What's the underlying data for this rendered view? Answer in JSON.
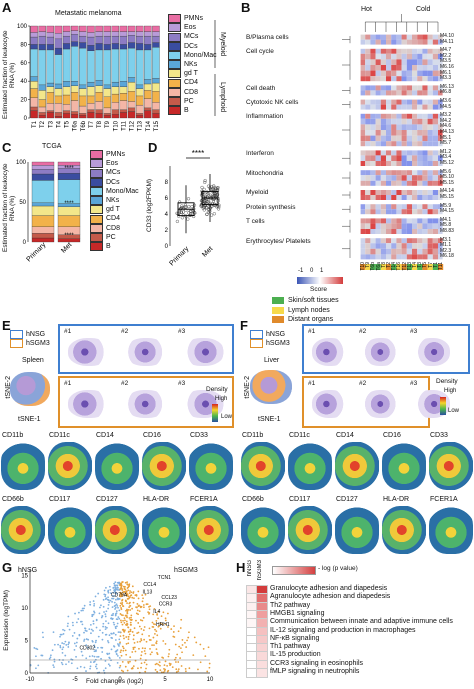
{
  "panels": {
    "A": {
      "letter": "A",
      "title": "Metastatic melanoma",
      "ylabel": "Estimated fraction of leukocyte RNA (%)",
      "yticks": [
        "0",
        "20",
        "40",
        "60",
        "80",
        "100"
      ],
      "samples": [
        "T1",
        "T2",
        "T3",
        "T4",
        "T5",
        "T6a",
        "T6b",
        "T7",
        "T8",
        "T9",
        "T10",
        "T11",
        "T12",
        "T13",
        "T14",
        "T15"
      ],
      "myeloid_label": "Myeloid",
      "lymphoid_label": "Lymphoid"
    },
    "B": {
      "letter": "B",
      "hot_label": "Hot",
      "cold_label": "Cold",
      "groups": [
        {
          "name": "B/Plasma cells",
          "modules": [
            "M4.10",
            "M4.11"
          ]
        },
        {
          "name": "Cell cycle",
          "modules": [
            "M4.7",
            "M2.2",
            "M3.5",
            "M6.16",
            "M6.1",
            "M3.3"
          ]
        },
        {
          "name": "Cell death",
          "modules": [
            "M6.13",
            "M6.8"
          ]
        },
        {
          "name": "Cytotoxic NK cells",
          "modules": [
            "M3.6",
            "M4.5"
          ]
        },
        {
          "name": "Inflammation",
          "modules": [
            "M3.2",
            "M4.2",
            "M4.6",
            "M4.13",
            "M5.1",
            "M5.7"
          ]
        },
        {
          "name": "Interferon",
          "modules": [
            "M1.2",
            "M3.4",
            "M5.12"
          ]
        },
        {
          "name": "Mitochondria",
          "modules": [
            "M5.6",
            "M5.10",
            "M5.15"
          ]
        },
        {
          "name": "Myeloid",
          "modules": [
            "M4.14",
            "M5.15"
          ]
        },
        {
          "name": "Protein synthesis",
          "modules": [
            "M5.9",
            "M4.15"
          ]
        },
        {
          "name": "T cells",
          "modules": [
            "M4.1",
            "M5.8",
            "M8.83"
          ]
        },
        {
          "name": "Erythrocytes/ Platelets",
          "modules": [
            "M3.1",
            "M1.1",
            "M2.3",
            "M6.18"
          ]
        }
      ],
      "columns": [
        "T10",
        "T9",
        "T6b",
        "T6a",
        "T8",
        "T2",
        "T14",
        "T16",
        "T12",
        "T13",
        "T4",
        "T3",
        "T5",
        "T7",
        "T1",
        "T11"
      ],
      "score_label": "Score",
      "score_ticks": [
        "-1",
        "0",
        "1"
      ],
      "site_legend": [
        "Skin/soft tissues",
        "Lymph nodes",
        "Distant organs"
      ],
      "site_colors": [
        "#4caf50",
        "#f6d94a",
        "#e08a2b"
      ]
    },
    "C": {
      "letter": "C",
      "title": "TCGA",
      "ylabel": "Estimated fraction of leukocyte RNA (%)",
      "categories": [
        "Primary",
        "Met"
      ],
      "stars": [
        "****",
        "****",
        "****"
      ]
    },
    "D": {
      "letter": "D",
      "ylabel": "CD33 (log2FPKM)",
      "yticks": [
        "0",
        "2",
        "4",
        "6",
        "8"
      ],
      "categories": [
        "Primary",
        "Met"
      ],
      "stars": "****"
    },
    "E": {
      "letter": "E",
      "legend": [
        "hNSG",
        "hSGM3"
      ],
      "tissue": "Spleen",
      "subset_labels": [
        "#1",
        "#2",
        "#3"
      ],
      "tsne1": "tSNE-1",
      "tsne2": "tSNE-2",
      "density": "Density",
      "high": "High",
      "low": "Low",
      "markers": [
        "CD11b",
        "CD11c",
        "CD14",
        "CD16",
        "CD33",
        "CD66b",
        "CD117",
        "CD127",
        "HLA-DR",
        "FCER1A"
      ]
    },
    "F": {
      "letter": "F",
      "legend": [
        "hNSG",
        "hSGM3"
      ],
      "tissue": "Liver",
      "subset_labels": [
        "#1",
        "#2",
        "#3"
      ],
      "tsne1": "tSNE-1",
      "tsne2": "tSNE-2",
      "density": "Density",
      "high": "High",
      "low": "Low",
      "markers": [
        "CD11b",
        "CD11c",
        "CD14",
        "CD16",
        "CD33",
        "CD66b",
        "CD117",
        "CD127",
        "HLA-DR",
        "FCER1A"
      ]
    },
    "G": {
      "letter": "G",
      "left_label": "hNSG",
      "right_label": "hSGM3",
      "ylabel": "Expression (logTPM)",
      "xlabel": "Fold changes (log2)",
      "xticks": [
        "-10",
        "-5",
        "0",
        "5",
        "10"
      ],
      "yticks": [
        "0",
        "5",
        "10",
        "15"
      ],
      "genes": [
        "TCN1",
        "CCL4",
        "IL13",
        "CCL23",
        "CCR3",
        "IL4",
        "CD79A",
        "HRH1",
        "CD302"
      ]
    },
    "H": {
      "letter": "H",
      "col_labels": [
        "hNSG",
        "hSGM3"
      ],
      "scale_label": "- log (p value)",
      "pathways": [
        "Granulocyte adhesion and diapedesis",
        "Agranulocyte adhesion and diapedesis",
        "Th2 pathway",
        "HMGB1 signaling",
        "Communication between innate and adaptive immune cells",
        "IL-12 signaling and production in macrophages",
        "NF-κB signaling",
        "Th1 pathway",
        "IL-15 production",
        "CCR3 signaling in eosinophils",
        "fMLP signaling in neutrophils"
      ]
    }
  },
  "cell_types": [
    "PMNs",
    "Eos",
    "MCs",
    "DCs",
    "Mono/Mac",
    "NKs",
    "gd T",
    "CD4",
    "CD8",
    "PC",
    "B"
  ],
  "cell_colors": [
    "#e86da3",
    "#b89bd8",
    "#8d7cc4",
    "#3a4da0",
    "#7ed0ec",
    "#5aa6d8",
    "#f3e78a",
    "#f2b24a",
    "#f4b6a6",
    "#c45a4a",
    "#c62828"
  ],
  "chart_data": [
    {
      "type": "bar",
      "title": "Metastatic melanoma",
      "ylabel": "Estimated fraction of leukocyte RNA (%)",
      "categories": [
        "T1",
        "T2",
        "T3",
        "T4",
        "T5",
        "T6a",
        "T6b",
        "T7",
        "T8",
        "T9",
        "T10",
        "T11",
        "T12",
        "T13",
        "T14",
        "T15"
      ],
      "stacked": true,
      "ylim": [
        0,
        100
      ],
      "series": [
        {
          "name": "B",
          "values": [
            8,
            3,
            6,
            2,
            5,
            4,
            3,
            6,
            5,
            3,
            4,
            6,
            7,
            3,
            8,
            5
          ]
        },
        {
          "name": "PC",
          "values": [
            4,
            3,
            2,
            4,
            3,
            3,
            2,
            3,
            4,
            2,
            5,
            3,
            4,
            2,
            3,
            4
          ]
        },
        {
          "name": "CD8",
          "values": [
            10,
            6,
            8,
            10,
            7,
            12,
            8,
            7,
            9,
            6,
            8,
            10,
            7,
            9,
            10,
            8
          ]
        },
        {
          "name": "CD4",
          "values": [
            10,
            8,
            12,
            8,
            10,
            9,
            11,
            8,
            10,
            12,
            9,
            8,
            11,
            10,
            9,
            12
          ]
        },
        {
          "name": "gd T",
          "values": [
            8,
            10,
            6,
            8,
            9,
            7,
            8,
            10,
            7,
            9,
            8,
            7,
            10,
            8,
            7,
            9
          ]
        },
        {
          "name": "NKs",
          "values": [
            5,
            6,
            4,
            5,
            6,
            5,
            4,
            5,
            6,
            4,
            5,
            6,
            5,
            4,
            5,
            5
          ]
        },
        {
          "name": "Mono/Mac",
          "values": [
            30,
            38,
            36,
            32,
            35,
            38,
            40,
            34,
            33,
            38,
            36,
            35,
            32,
            38,
            32,
            34
          ]
        },
        {
          "name": "DCs",
          "values": [
            5,
            6,
            6,
            7,
            6,
            5,
            6,
            6,
            7,
            6,
            6,
            5,
            6,
            7,
            6,
            5
          ]
        },
        {
          "name": "MCs",
          "values": [
            8,
            9,
            8,
            10,
            8,
            8,
            7,
            9,
            8,
            9,
            8,
            9,
            8,
            8,
            9,
            7
          ]
        },
        {
          "name": "Eos",
          "values": [
            5,
            5,
            5,
            6,
            5,
            4,
            5,
            5,
            5,
            5,
            5,
            5,
            4,
            5,
            5,
            5
          ]
        },
        {
          "name": "PMNs",
          "values": [
            7,
            6,
            7,
            8,
            6,
            5,
            6,
            7,
            6,
            6,
            6,
            6,
            6,
            6,
            6,
            6
          ]
        }
      ]
    },
    {
      "type": "bar",
      "title": "TCGA",
      "ylabel": "Estimated fraction of leukocyte RNA (%)",
      "categories": [
        "Primary",
        "Met"
      ],
      "stacked": true,
      "ylim": [
        0,
        100
      ],
      "series": [
        {
          "name": "B",
          "values": [
            5,
            4
          ]
        },
        {
          "name": "PC",
          "values": [
            6,
            5
          ]
        },
        {
          "name": "CD8",
          "values": [
            8,
            10
          ]
        },
        {
          "name": "CD4",
          "values": [
            14,
            14
          ]
        },
        {
          "name": "gd T",
          "values": [
            12,
            11
          ]
        },
        {
          "name": "NKs",
          "values": [
            4,
            4
          ]
        },
        {
          "name": "Mono/Mac",
          "values": [
            28,
            30
          ]
        },
        {
          "name": "DCs",
          "values": [
            8,
            8
          ]
        },
        {
          "name": "MCs",
          "values": [
            6,
            6
          ]
        },
        {
          "name": "Eos",
          "values": [
            5,
            4
          ]
        },
        {
          "name": "PMNs",
          "values": [
            4,
            4
          ]
        }
      ]
    },
    {
      "type": "scatter",
      "ylabel": "CD33 (log2FPKM)",
      "categories": [
        "Primary",
        "Met"
      ],
      "ylim": [
        0,
        10
      ],
      "medians": [
        4.6,
        6.0
      ]
    }
  ]
}
